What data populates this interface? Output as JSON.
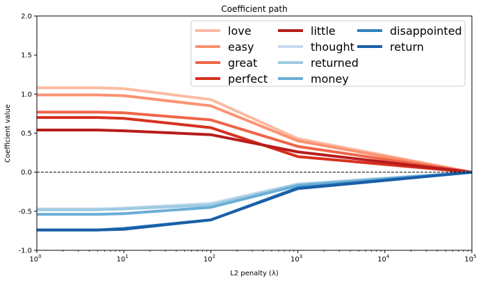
{
  "chart_data": {
    "type": "line",
    "title": "Coefficient path",
    "xlabel": "L2 penalty (λ)",
    "ylabel": "Coefficient value",
    "xscale": "log",
    "xlim": [
      1,
      100000
    ],
    "ylim": [
      -1.0,
      2.0
    ],
    "x_ticks": [
      {
        "value": 1,
        "base": "10",
        "exp": "0"
      },
      {
        "value": 10,
        "base": "10",
        "exp": "1"
      },
      {
        "value": 100,
        "base": "10",
        "exp": "2"
      },
      {
        "value": 1000,
        "base": "10",
        "exp": "3"
      },
      {
        "value": 10000,
        "base": "10",
        "exp": "4"
      },
      {
        "value": 100000,
        "base": "10",
        "exp": "5"
      }
    ],
    "y_ticks": [
      "-1.0",
      "-0.5",
      "0.0",
      "0.5",
      "1.0",
      "1.5",
      "2.0"
    ],
    "reference_line": {
      "y": 0,
      "style": "dashed",
      "color": "#000000"
    },
    "legend_position": "top-right",
    "x": [
      1,
      5,
      10,
      100,
      1000,
      100000
    ],
    "series": [
      {
        "name": "love",
        "color": "#fcbba1",
        "values": [
          1.08,
          1.08,
          1.07,
          0.93,
          0.43,
          0.0
        ]
      },
      {
        "name": "easy",
        "color": "#fc9272",
        "values": [
          0.99,
          0.99,
          0.98,
          0.85,
          0.4,
          0.0
        ]
      },
      {
        "name": "great",
        "color": "#ef6548",
        "values": [
          0.77,
          0.77,
          0.76,
          0.67,
          0.33,
          0.0
        ]
      },
      {
        "name": "perfect",
        "color": "#d7301f",
        "values": [
          0.7,
          0.7,
          0.69,
          0.57,
          0.2,
          0.0
        ]
      },
      {
        "name": "little",
        "color": "#b71c1c",
        "values": [
          0.54,
          0.54,
          0.53,
          0.48,
          0.26,
          0.0
        ]
      },
      {
        "name": "thought",
        "color": "#c6dbef",
        "values": [
          -0.47,
          -0.47,
          -0.46,
          -0.4,
          -0.15,
          0.0
        ]
      },
      {
        "name": "returned",
        "color": "#9ecae1",
        "values": [
          -0.48,
          -0.48,
          -0.47,
          -0.42,
          -0.16,
          0.0
        ]
      },
      {
        "name": "money",
        "color": "#6baed6",
        "values": [
          -0.54,
          -0.54,
          -0.53,
          -0.45,
          -0.17,
          0.0
        ]
      },
      {
        "name": "disappointed",
        "color": "#3182bd",
        "values": [
          -0.74,
          -0.74,
          -0.72,
          -0.61,
          -0.2,
          0.0
        ]
      },
      {
        "name": "return",
        "color": "#1a5fa8",
        "values": [
          -0.74,
          -0.74,
          -0.73,
          -0.61,
          -0.21,
          0.0
        ]
      }
    ]
  }
}
